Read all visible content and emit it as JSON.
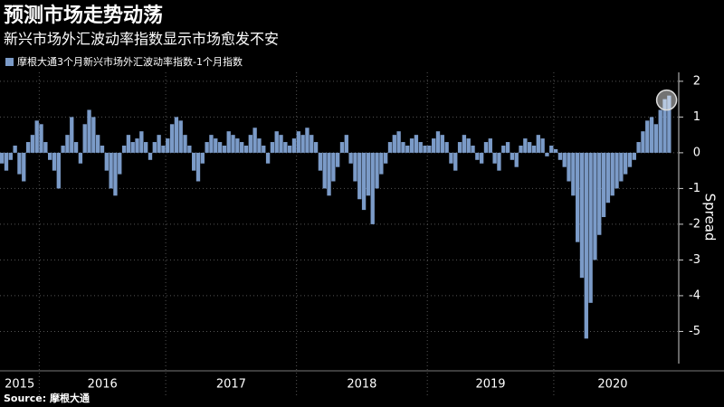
{
  "chart_data": {
    "type": "bar",
    "title": "预测市场走势动荡",
    "subtitle": "新兴市场外汇波动率指数显示市场愈发不安",
    "legend": "摩根大通3个月新兴市场外汇波动率指数-1个月指数",
    "y_label": "Spread",
    "source": "Source: 摩根大通",
    "color": "#7b9bc8",
    "ylim": [
      -5.9,
      2.25
    ],
    "yticks": [
      -5,
      -4,
      -3,
      -2,
      -1,
      0,
      1,
      2
    ],
    "grid": true,
    "groups": [
      {
        "label": "2015",
        "values": [
          -0.3,
          -0.5,
          -0.2,
          0.2,
          -0.6,
          -0.8,
          0.3,
          0.5,
          0.9
        ]
      },
      {
        "label": "2016",
        "values": [
          0.8,
          0.3,
          -0.2,
          -0.5,
          -1.0,
          0.2,
          0.5,
          1.0,
          0.3,
          -0.3,
          0.8,
          1.2,
          1.0,
          0.5,
          0.2,
          -0.5,
          -1.0,
          -1.2,
          -0.6,
          0.2,
          0.5,
          0.3,
          0.4,
          0.6,
          0.3,
          -0.2,
          0.3,
          0.5,
          0.2
        ]
      },
      {
        "label": "2017",
        "values": [
          0.4,
          0.8,
          1.0,
          0.9,
          0.5,
          0.2,
          -0.5,
          -0.8,
          -0.3,
          0.3,
          0.5,
          0.4,
          0.3,
          0.2,
          0.6,
          0.5,
          0.4,
          0.3,
          0.2,
          0.5,
          0.7,
          0.4,
          0.2,
          -0.3,
          0.3,
          0.6,
          0.5,
          0.3,
          0.2,
          0.4
        ]
      },
      {
        "label": "2018",
        "values": [
          0.6,
          0.5,
          0.7,
          0.5,
          0.3,
          -0.5,
          -1.0,
          -1.2,
          -0.8,
          -0.4,
          0.3,
          0.5,
          -0.3,
          -0.8,
          -1.3,
          -1.6,
          -1.2,
          -2.0,
          -1.0,
          -0.6,
          -0.3,
          0.3,
          0.5,
          0.6,
          0.3,
          0.2,
          0.4,
          0.5,
          0.3,
          0.2
        ]
      },
      {
        "label": "2019",
        "values": [
          0.2,
          0.4,
          0.6,
          0.5,
          0.3,
          -0.3,
          -0.5,
          0.3,
          0.5,
          0.4,
          0.2,
          -0.2,
          -0.3,
          0.3,
          0.4,
          -0.3,
          -0.5,
          0.2,
          0.3,
          -0.2,
          -0.4,
          0.2,
          0.4,
          0.3,
          0.2,
          0.5,
          0.4,
          -0.1,
          0.2
        ]
      },
      {
        "label": "2020",
        "values": [
          0.1,
          -0.2,
          -0.4,
          -0.8,
          -1.2,
          -2.5,
          -3.5,
          -5.2,
          -4.2,
          -3.0,
          -2.3,
          -1.8,
          -1.4,
          -1.2,
          -1.0,
          -0.8,
          -0.6,
          -0.4,
          -0.2,
          0.3,
          0.6,
          0.9,
          1.0,
          0.8,
          1.2,
          1.5,
          1.6
        ]
      }
    ]
  }
}
